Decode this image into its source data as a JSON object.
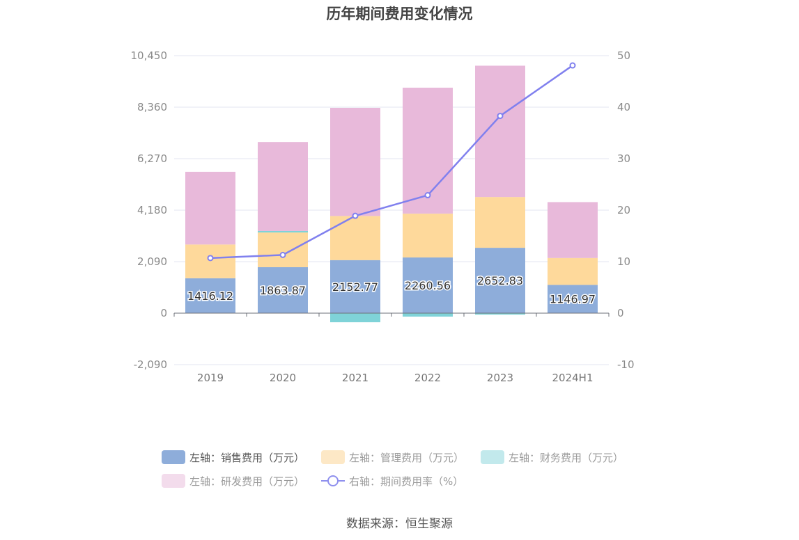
{
  "title": "历年期间费用变化情况",
  "source": "数据来源：恒生聚源",
  "chart_data": {
    "type": "bar",
    "stacked": true,
    "categories": [
      "2019",
      "2020",
      "2021",
      "2022",
      "2023",
      "2024H1"
    ],
    "left_axis": {
      "ticks": [
        "10,450",
        "8,360",
        "6,270",
        "4,180",
        "2,090",
        "0",
        "-2,090"
      ],
      "ylim": [
        -2090,
        10450
      ]
    },
    "right_axis": {
      "ticks": [
        "50",
        "40",
        "30",
        "20",
        "10",
        "0",
        "-10"
      ],
      "ylim": [
        -10,
        50
      ]
    },
    "series": [
      {
        "name": "左轴：销售费用（万元）",
        "axis": "left",
        "color": "#8eadda",
        "values": [
          1416.12,
          1863.87,
          2152.77,
          2260.56,
          2652.83,
          1146.97
        ],
        "labels": [
          "1416.12",
          "1863.87",
          "2152.77",
          "2260.56",
          "2652.83",
          "1146.97"
        ]
      },
      {
        "name": "左轴：管理费用（万元）",
        "axis": "left",
        "color": "#fed99b",
        "values": [
          1370,
          1410,
          1790,
          1780,
          2060,
          1090
        ]
      },
      {
        "name": "左轴：财务费用（万元）",
        "axis": "left",
        "color": "#7fd3d8",
        "values": [
          -10,
          60,
          -370,
          -140,
          -60,
          0
        ]
      },
      {
        "name": "左轴：研发费用（万元）",
        "axis": "left",
        "color": "#e8b9da",
        "values": [
          2950,
          3610,
          4390,
          5110,
          5330,
          2270
        ]
      },
      {
        "name": "右轴：期间费用率（%）",
        "axis": "right",
        "type": "line",
        "color": "#8080ee",
        "values": [
          10.7,
          11.3,
          18.9,
          22.9,
          38.3,
          48.1
        ]
      }
    ],
    "legend": {
      "position": "bottom",
      "inactive": [
        "左轴：管理费用（万元）",
        "左轴：财务费用（万元）",
        "左轴：研发费用（万元）",
        "右轴：期间费用率（%）"
      ]
    }
  }
}
